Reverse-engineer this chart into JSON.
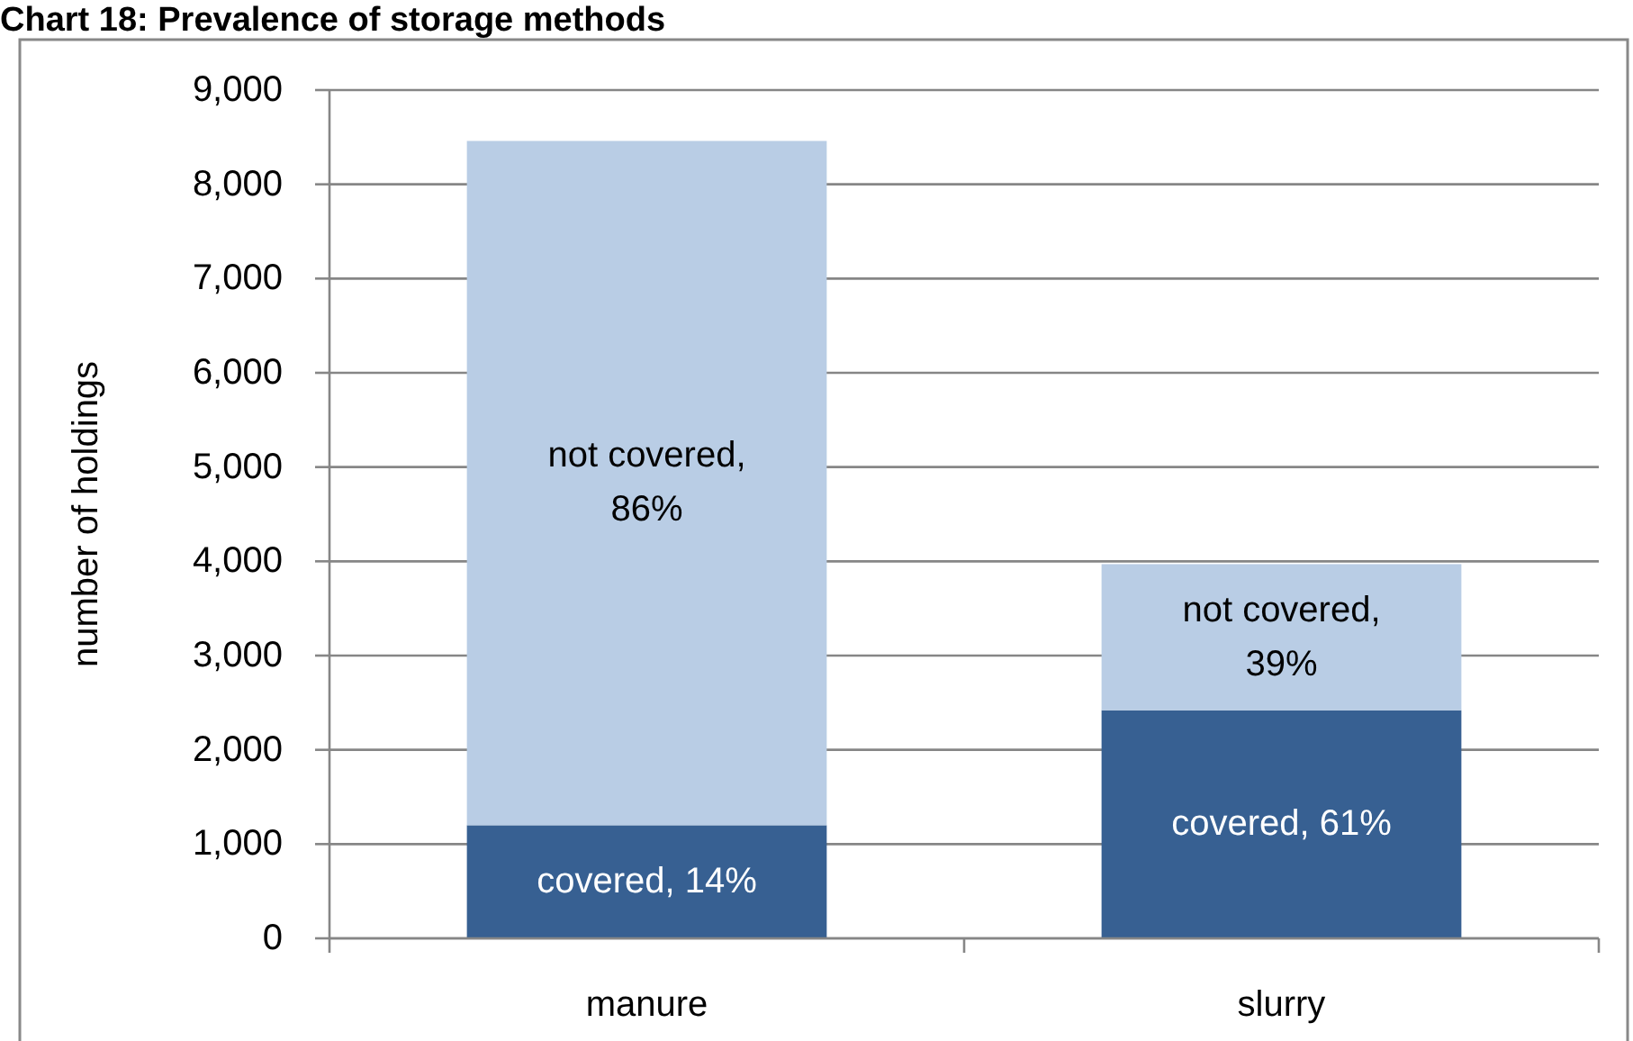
{
  "chart_data": {
    "type": "bar",
    "title": "Chart 18: Prevalence of storage methods",
    "ylabel": "number of holdings",
    "categories": [
      "manure",
      "slurry"
    ],
    "stacked": true,
    "series": [
      {
        "color": "#376092",
        "values": [
          1200,
          2420
        ]
      },
      {
        "color": "#b9cde5",
        "values": [
          7260,
          1550
        ]
      }
    ],
    "annotations": [
      "covered, 14%",
      "covered, 61%",
      "not covered, 86%",
      "not covered, 39%"
    ],
    "ylim": [
      0,
      9000
    ],
    "yticks": [
      0,
      {
        "value": 1000,
        "label": "1,000"
      },
      {
        "value": 2000,
        "label": "2,000"
      },
      {
        "value": 3000,
        "label": "3,000"
      },
      {
        "value": 4000,
        "label": "4,000"
      },
      {
        "value": 5000,
        "label": "5,000"
      },
      {
        "value": 6000,
        "label": "6,000"
      },
      {
        "value": 7000,
        "label": "7,000"
      },
      {
        "value": 8000,
        "label": "8,000"
      },
      {
        "value": 9000,
        "label": "9,000"
      }
    ],
    "grid": "y"
  }
}
